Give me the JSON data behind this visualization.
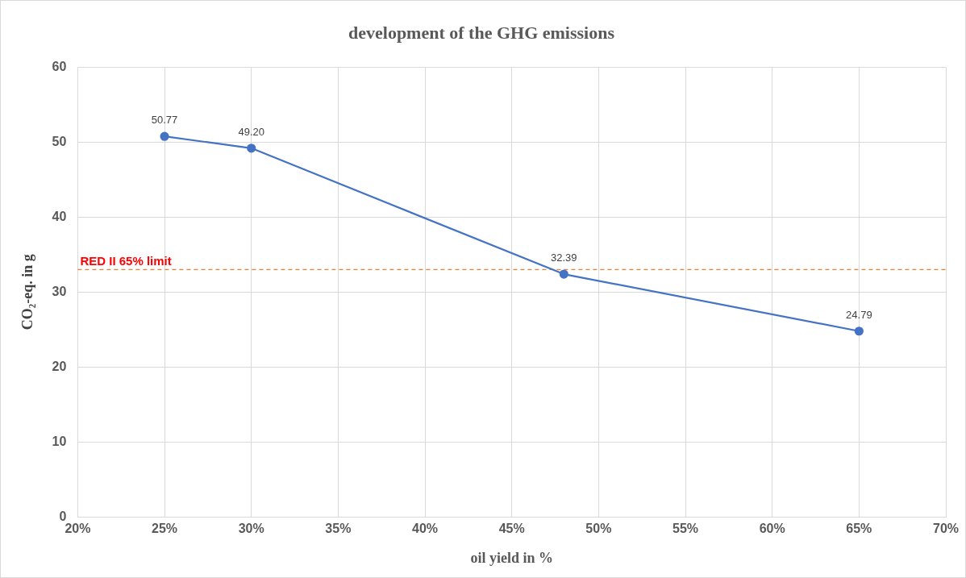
{
  "chart_data": {
    "type": "line",
    "title": "development of the GHG emissions",
    "xlabel": "oil yield in %",
    "ylabel": "CO₂-eq. in g",
    "x": [
      25,
      30,
      48,
      65
    ],
    "series": [
      {
        "color": "#4472c4",
        "values": [
          50.77,
          49.2,
          32.39,
          24.79
        ],
        "value_labels": [
          "50.77",
          "49.20",
          "32.39",
          "24.79"
        ]
      }
    ],
    "xlim": [
      20,
      70
    ],
    "xticks": [
      {
        "value": 20,
        "label": "20%"
      },
      {
        "value": 25,
        "label": "25%"
      },
      {
        "value": 30,
        "label": "30%"
      },
      {
        "value": 35,
        "label": "35%"
      },
      {
        "value": 40,
        "label": "40%"
      },
      {
        "value": 45,
        "label": "45%"
      },
      {
        "value": 50,
        "label": "50%"
      },
      {
        "value": 55,
        "label": "55%"
      },
      {
        "value": 60,
        "label": "60%"
      },
      {
        "value": 65,
        "label": "65%"
      },
      {
        "value": 70,
        "label": "70%"
      }
    ],
    "ylim": [
      0,
      60
    ],
    "yticks": [
      0,
      10,
      20,
      30,
      40,
      50,
      60
    ],
    "ref_lines": [
      {
        "axis": "y",
        "value": 33,
        "label": "RED II 65% limit",
        "color": "#ed7d31",
        "line_style": "dashed"
      }
    ],
    "grid": true,
    "legend": false,
    "marker": "circle",
    "line_style": "solid"
  }
}
